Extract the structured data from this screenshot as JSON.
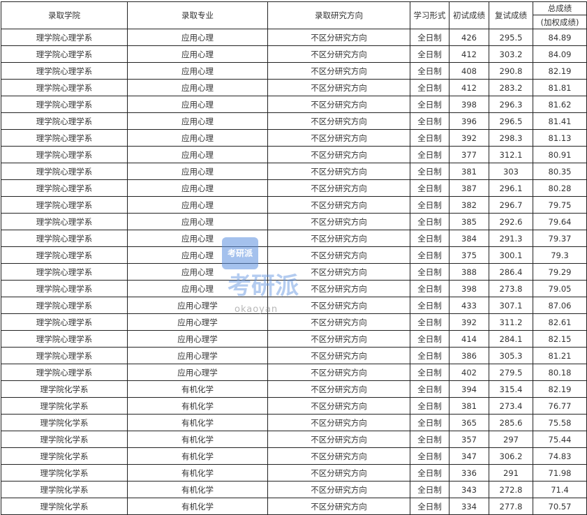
{
  "headers": {
    "college": "录取学院",
    "major": "录取专业",
    "direction": "录取研究方向",
    "mode": "学习形式",
    "initial": "初试成绩",
    "retest": "复试成绩",
    "total": "总成绩",
    "total_sub": "(加权成绩)"
  },
  "watermark": {
    "logo": "考研派",
    "text": "考研派",
    "url": "okaoyan"
  },
  "rows": [
    [
      "理学院心理学系",
      "应用心理",
      "不区分研究方向",
      "全日制",
      "426",
      "295.5",
      "84.89"
    ],
    [
      "理学院心理学系",
      "应用心理",
      "不区分研究方向",
      "全日制",
      "412",
      "303.2",
      "84.09"
    ],
    [
      "理学院心理学系",
      "应用心理",
      "不区分研究方向",
      "全日制",
      "408",
      "290.8",
      "82.19"
    ],
    [
      "理学院心理学系",
      "应用心理",
      "不区分研究方向",
      "全日制",
      "412",
      "283.2",
      "81.81"
    ],
    [
      "理学院心理学系",
      "应用心理",
      "不区分研究方向",
      "全日制",
      "398",
      "296.3",
      "81.62"
    ],
    [
      "理学院心理学系",
      "应用心理",
      "不区分研究方向",
      "全日制",
      "396",
      "296.5",
      "81.41"
    ],
    [
      "理学院心理学系",
      "应用心理",
      "不区分研究方向",
      "全日制",
      "392",
      "298.3",
      "81.13"
    ],
    [
      "理学院心理学系",
      "应用心理",
      "不区分研究方向",
      "全日制",
      "377",
      "312.1",
      "80.91"
    ],
    [
      "理学院心理学系",
      "应用心理",
      "不区分研究方向",
      "全日制",
      "381",
      "303",
      "80.35"
    ],
    [
      "理学院心理学系",
      "应用心理",
      "不区分研究方向",
      "全日制",
      "387",
      "296.1",
      "80.28"
    ],
    [
      "理学院心理学系",
      "应用心理",
      "不区分研究方向",
      "全日制",
      "382",
      "296.7",
      "79.75"
    ],
    [
      "理学院心理学系",
      "应用心理",
      "不区分研究方向",
      "全日制",
      "385",
      "292.6",
      "79.64"
    ],
    [
      "理学院心理学系",
      "应用心理",
      "不区分研究方向",
      "全日制",
      "384",
      "291.3",
      "79.37"
    ],
    [
      "理学院心理学系",
      "应用心理",
      "不区分研究方向",
      "全日制",
      "375",
      "300.1",
      "79.3"
    ],
    [
      "理学院心理学系",
      "应用心理",
      "不区分研究方向",
      "全日制",
      "388",
      "286.4",
      "79.29"
    ],
    [
      "理学院心理学系",
      "应用心理",
      "不区分研究方向",
      "全日制",
      "398",
      "273.8",
      "79.05"
    ],
    [
      "理学院心理学系",
      "应用心理学",
      "不区分研究方向",
      "全日制",
      "433",
      "307.1",
      "87.06"
    ],
    [
      "理学院心理学系",
      "应用心理学",
      "不区分研究方向",
      "全日制",
      "392",
      "311.2",
      "82.61"
    ],
    [
      "理学院心理学系",
      "应用心理学",
      "不区分研究方向",
      "全日制",
      "414",
      "284.1",
      "82.15"
    ],
    [
      "理学院心理学系",
      "应用心理学",
      "不区分研究方向",
      "全日制",
      "386",
      "305.3",
      "81.21"
    ],
    [
      "理学院心理学系",
      "应用心理学",
      "不区分研究方向",
      "全日制",
      "402",
      "279.5",
      "80.18"
    ],
    [
      "理学院化学系",
      "有机化学",
      "不区分研究方向",
      "全日制",
      "394",
      "315.4",
      "82.19"
    ],
    [
      "理学院化学系",
      "有机化学",
      "不区分研究方向",
      "全日制",
      "381",
      "273.4",
      "76.77"
    ],
    [
      "理学院化学系",
      "有机化学",
      "不区分研究方向",
      "全日制",
      "365",
      "285.6",
      "75.58"
    ],
    [
      "理学院化学系",
      "有机化学",
      "不区分研究方向",
      "全日制",
      "357",
      "297",
      "75.44"
    ],
    [
      "理学院化学系",
      "有机化学",
      "不区分研究方向",
      "全日制",
      "347",
      "306.2",
      "74.83"
    ],
    [
      "理学院化学系",
      "有机化学",
      "不区分研究方向",
      "全日制",
      "336",
      "291",
      "71.98"
    ],
    [
      "理学院化学系",
      "有机化学",
      "不区分研究方向",
      "全日制",
      "343",
      "272.8",
      "71.4"
    ],
    [
      "理学院化学系",
      "有机化学",
      "不区分研究方向",
      "全日制",
      "334",
      "277.8",
      "70.57"
    ]
  ]
}
